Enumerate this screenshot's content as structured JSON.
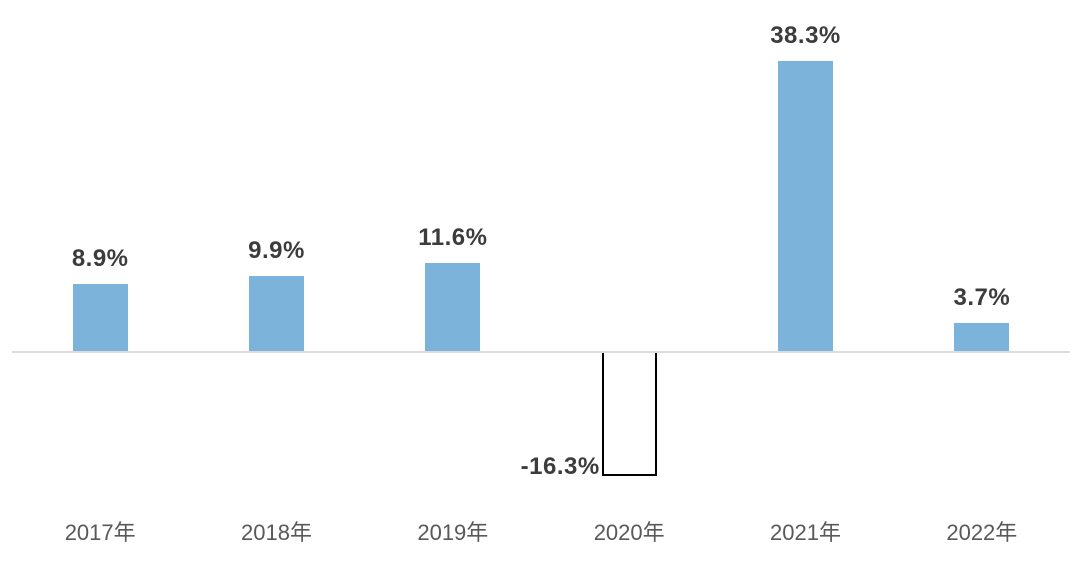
{
  "chart_data": {
    "type": "bar",
    "title": "",
    "xlabel": "",
    "ylabel": "",
    "categories": [
      "2017年",
      "2018年",
      "2019年",
      "2020年",
      "2021年",
      "2022年"
    ],
    "values": [
      8.9,
      9.9,
      11.6,
      -16.3,
      38.3,
      3.7
    ],
    "value_labels": [
      "8.9%",
      "9.9%",
      "11.6%",
      "-16.3%",
      "38.3%",
      "3.7%"
    ],
    "ylim": [
      -20,
      42
    ],
    "grid": false,
    "legend": false,
    "colors": {
      "bar_fill": "#7BB3DA",
      "negative_bar_fill": "#FFFFFF",
      "negative_bar_border": "#000000",
      "value_label": "#3C3C3C",
      "tick_label": "#595959",
      "axis_line": "#DCDCDC",
      "background": "#FFFFFF"
    }
  }
}
